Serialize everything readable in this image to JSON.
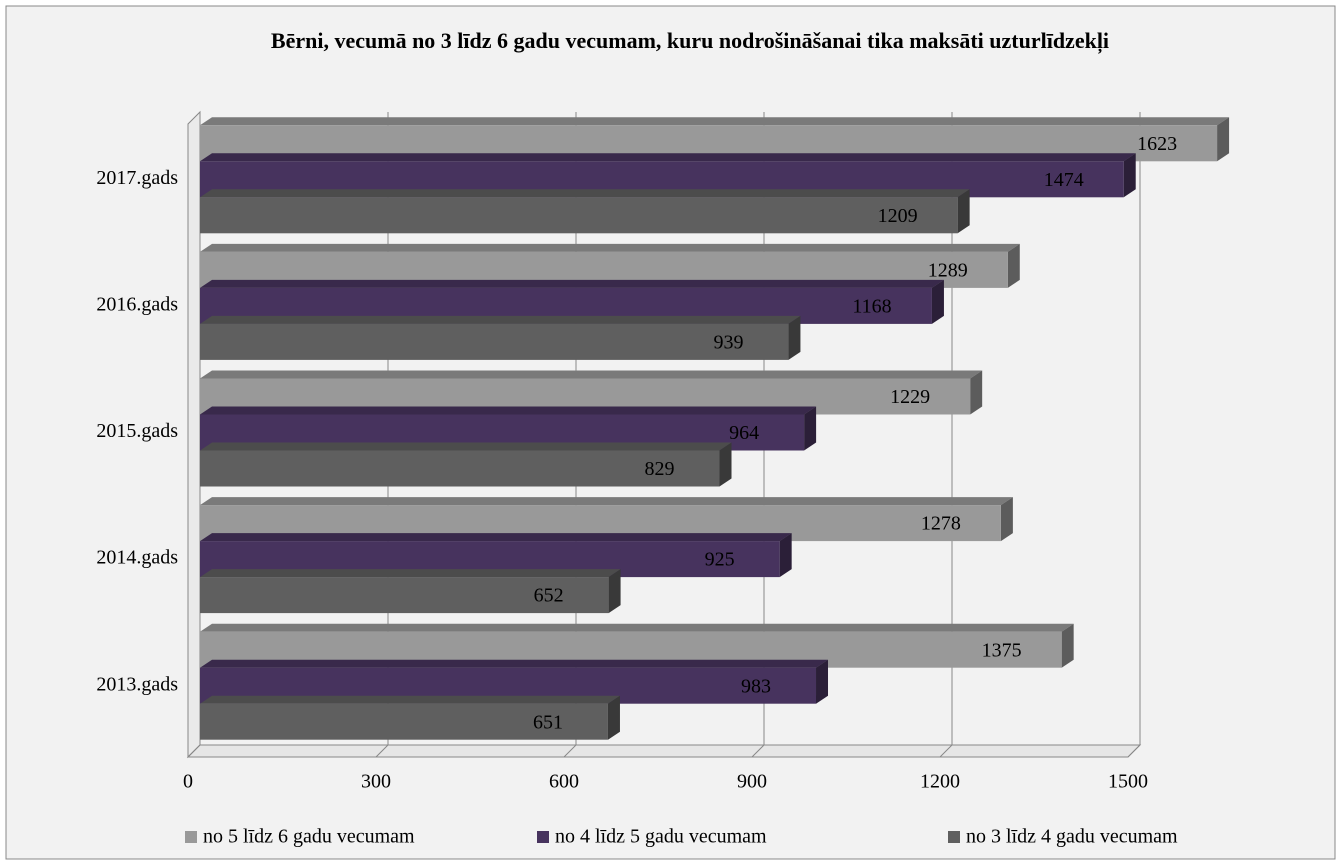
{
  "chart_data": {
    "type": "bar3d_horizontal",
    "title": "Bērni, vecumā no 3 līdz 6 gadu vecumam, kuru nodrošināšanai tika maksāti uzturlīdzekļi",
    "categories": [
      "2013.gads",
      "2014.gads",
      "2015.gads",
      "2016.gads",
      "2017.gads"
    ],
    "series": [
      {
        "name": "no 5 līdz 6 gadu vecumam",
        "color": "#999999",
        "values": [
          1375,
          1278,
          1229,
          1289,
          1623
        ]
      },
      {
        "name": "no 4 līdz 5 gadu vecumam",
        "color": "#47335e",
        "values": [
          983,
          925,
          964,
          1168,
          1474
        ]
      },
      {
        "name": "no 3 līdz 4 gadu vecumam",
        "color": "#5f5f5f",
        "values": [
          651,
          652,
          829,
          939,
          1209
        ]
      }
    ],
    "xlim": [
      0,
      1500
    ],
    "xticks": [
      0,
      300,
      600,
      900,
      1200,
      1500
    ],
    "grid": true,
    "legend": "bottom"
  }
}
